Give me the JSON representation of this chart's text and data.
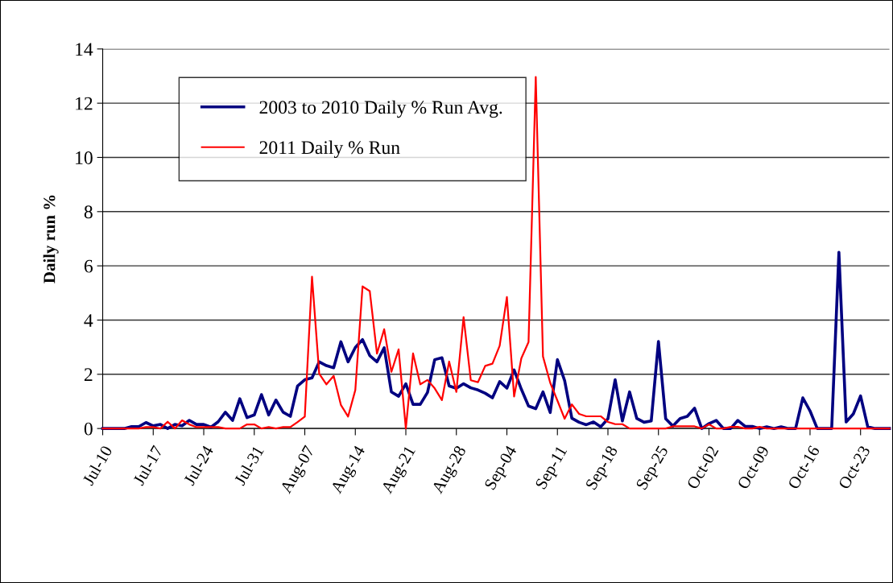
{
  "chart_data": {
    "type": "line",
    "ylabel": "Daily run %",
    "categories": [
      "Jul-10",
      null,
      null,
      null,
      null,
      null,
      null,
      "Jul-17",
      null,
      null,
      null,
      null,
      null,
      null,
      "Jul-24",
      null,
      null,
      null,
      null,
      null,
      null,
      "Jul-31",
      null,
      null,
      null,
      null,
      null,
      null,
      "Aug-07",
      null,
      null,
      null,
      null,
      null,
      null,
      "Aug-14",
      null,
      null,
      null,
      null,
      null,
      null,
      "Aug-21",
      null,
      null,
      null,
      null,
      null,
      null,
      "Aug-28",
      null,
      null,
      null,
      null,
      null,
      null,
      "Sep-04",
      null,
      null,
      null,
      null,
      null,
      null,
      "Sep-11",
      null,
      null,
      null,
      null,
      null,
      null,
      "Sep-18",
      null,
      null,
      null,
      null,
      null,
      null,
      "Sep-25",
      null,
      null,
      null,
      null,
      null,
      null,
      "Oct-02",
      null,
      null,
      null,
      null,
      null,
      null,
      "Oct-09",
      null,
      null,
      null,
      null,
      null,
      null,
      "Oct-16",
      null,
      null,
      null,
      null,
      null,
      null,
      "Oct-23",
      null,
      null,
      null,
      null
    ],
    "ylim": [
      0,
      14
    ],
    "yticks": [
      0,
      2,
      4,
      6,
      8,
      10,
      12,
      14
    ],
    "grid": "y",
    "legend": "top left",
    "marker": "none",
    "line_style": "solid",
    "series": [
      {
        "name": "2003 to 2010 Daily % Run Avg.",
        "color": "#000080",
        "values": [
          0,
          0,
          0,
          0,
          0.07,
          0.07,
          0.22,
          0.1,
          0.15,
          0,
          0.15,
          0.1,
          0.3,
          0.15,
          0.15,
          0.05,
          0.25,
          0.6,
          0.3,
          1.1,
          0.4,
          0.5,
          1.25,
          0.5,
          1.05,
          0.6,
          0.45,
          1.57,
          1.8,
          1.87,
          2.46,
          2.32,
          2.24,
          3.2,
          2.46,
          2.99,
          3.28,
          2.69,
          2.46,
          2.98,
          1.35,
          1.19,
          1.65,
          0.89,
          0.89,
          1.33,
          2.54,
          2.61,
          1.57,
          1.48,
          1.65,
          1.5,
          1.42,
          1.3,
          1.13,
          1.73,
          1.49,
          2.16,
          1.45,
          0.83,
          0.73,
          1.35,
          0.59,
          2.54,
          1.77,
          0.38,
          0.23,
          0.14,
          0.24,
          0.06,
          0.36,
          1.8,
          0.28,
          1.35,
          0.37,
          0.23,
          0.28,
          3.21,
          0.36,
          0.09,
          0.37,
          0.45,
          0.75,
          0,
          0.18,
          0.3,
          0,
          0,
          0.3,
          0.08,
          0.08,
          0,
          0.06,
          0,
          0.06,
          0,
          0,
          1.13,
          0.65,
          0,
          0,
          0,
          6.5,
          0.24,
          0.54,
          1.2,
          0.06,
          0,
          0,
          0
        ]
      },
      {
        "name": "2011 Daily % Run",
        "color": "#ff0000",
        "values": [
          0,
          0,
          0,
          0,
          0,
          0,
          0.05,
          0.05,
          0,
          0.25,
          0,
          0.3,
          0.15,
          0.05,
          0.05,
          0.05,
          0.05,
          0,
          0,
          0,
          0.15,
          0.15,
          0,
          0.05,
          0,
          0.05,
          0.05,
          0.24,
          0.44,
          5.6,
          2.02,
          1.63,
          1.94,
          0.87,
          0.44,
          1.42,
          5.24,
          5.07,
          2.76,
          3.66,
          2.09,
          2.92,
          0,
          2.77,
          1.63,
          1.79,
          1.48,
          1.05,
          2.47,
          1.35,
          4.11,
          1.78,
          1.71,
          2.31,
          2.39,
          3.05,
          4.85,
          1.18,
          2.59,
          3.19,
          12.97,
          2.66,
          1.69,
          1.03,
          0.36,
          0.89,
          0.54,
          0.45,
          0.45,
          0.45,
          0.24,
          0.16,
          0.16,
          0,
          0,
          0,
          0,
          0,
          0,
          0.08,
          0.08,
          0.08,
          0.08,
          0,
          0.15,
          0,
          0,
          0.06,
          0.06,
          0,
          0,
          0.06,
          0,
          0,
          0,
          0,
          0,
          0,
          0,
          0,
          0,
          0,
          0,
          0,
          0,
          0,
          0,
          0,
          0,
          0
        ]
      }
    ]
  }
}
